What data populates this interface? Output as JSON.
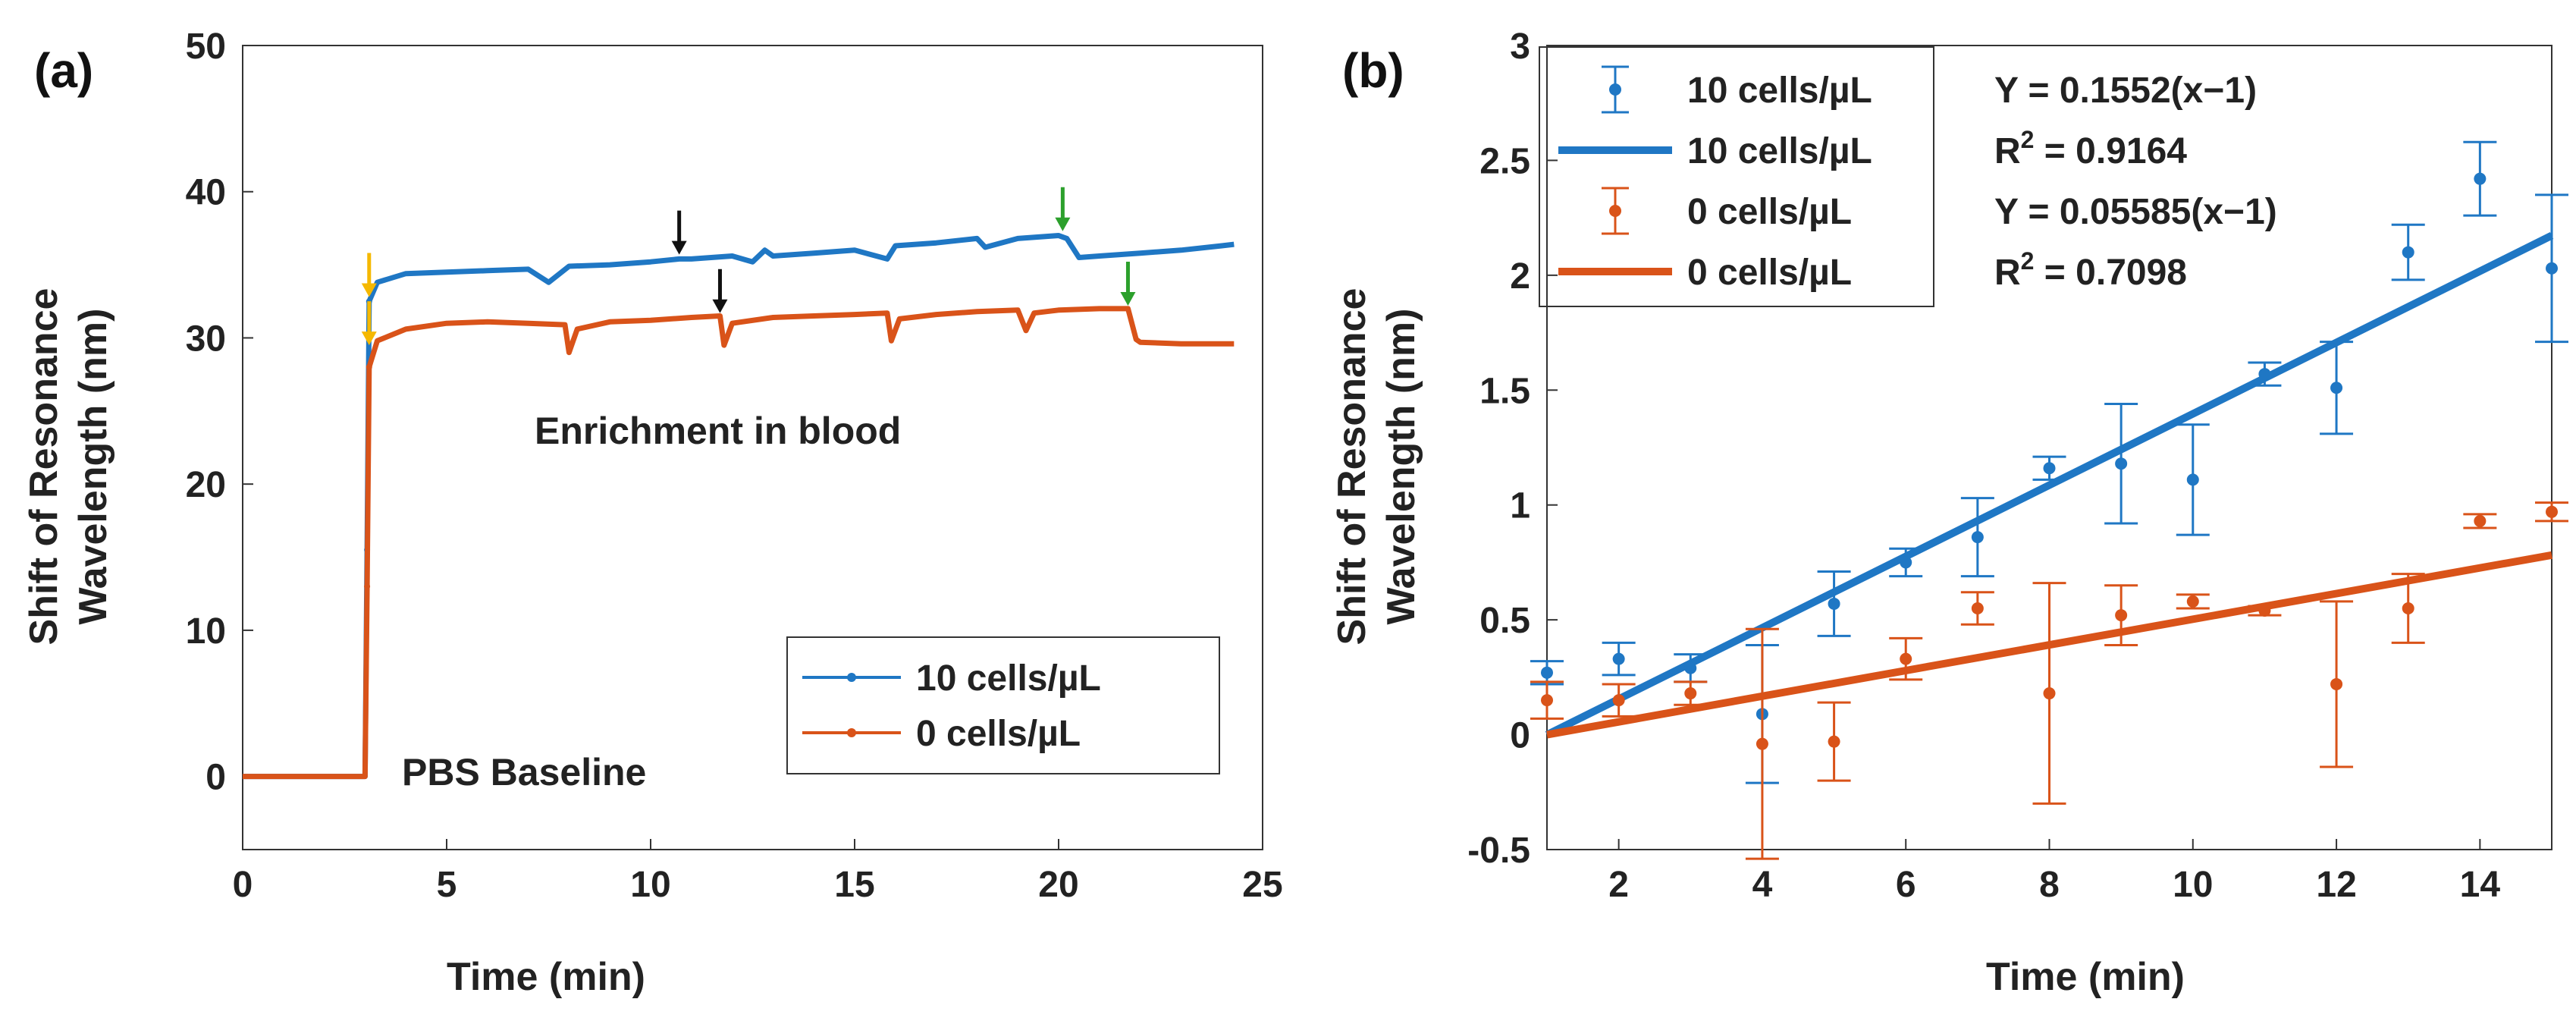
{
  "colors": {
    "blue": "#1f77c4",
    "orange": "#d95319",
    "black": "#111111",
    "green": "#2ca02c",
    "yellow": "#f5b800"
  },
  "chart_data": [
    {
      "panel": "(a)",
      "type": "line",
      "xlabel": "Time (min)",
      "ylabel_line1": "Shift of Resonance",
      "ylabel_line2": "Wavelength (nm)",
      "xlim": [
        0,
        25
      ],
      "ylim": [
        -5,
        50
      ],
      "xticks": [
        0,
        5,
        10,
        15,
        20,
        25
      ],
      "yticks": [
        0,
        10,
        20,
        30,
        40,
        50
      ],
      "xtick_labels": [
        "0",
        "5",
        "10",
        "15",
        "20",
        "25"
      ],
      "ytick_labels": [
        "0",
        "10",
        "20",
        "30",
        "40",
        "50"
      ],
      "legend": [
        "10 cells/µL",
        "0 cells/µL"
      ],
      "annotations": {
        "baseline": "PBS Baseline",
        "enrichment": "Enrichment in blood"
      },
      "series": [
        {
          "name": "10 cells/µL",
          "color": "#1f77c4",
          "x": [
            0,
            1,
            2,
            3.0,
            3.05,
            3.1,
            3.3,
            4,
            5,
            6,
            7,
            7.5,
            8,
            9,
            10,
            10.7,
            11,
            12,
            12.5,
            12.8,
            13,
            14,
            15,
            15.8,
            16,
            17,
            18,
            18.2,
            19,
            20,
            20.2,
            20.5,
            21,
            22,
            23,
            24,
            24.3
          ],
          "y": [
            0,
            0,
            0,
            0,
            15.5,
            32.5,
            33.8,
            34.4,
            34.5,
            34.6,
            34.7,
            33.8,
            34.9,
            35.0,
            35.2,
            35.4,
            35.4,
            35.6,
            35.2,
            36.0,
            35.6,
            35.8,
            36.0,
            35.4,
            36.3,
            36.5,
            36.8,
            36.2,
            36.8,
            37.0,
            36.8,
            35.5,
            35.6,
            35.8,
            36.0,
            36.3,
            36.4
          ]
        },
        {
          "name": "0 cells/µL",
          "color": "#d95319",
          "x": [
            0,
            1,
            2,
            3.0,
            3.05,
            3.1,
            3.3,
            4,
            5,
            6,
            7,
            7.9,
            8.0,
            8.2,
            9,
            10,
            11,
            11.7,
            11.8,
            12.0,
            13,
            14,
            15,
            15.8,
            15.9,
            16.1,
            17,
            18,
            19,
            19.2,
            19.4,
            20,
            21,
            21.7,
            21.9,
            22,
            23,
            24,
            24.3
          ],
          "y": [
            0,
            0,
            0,
            0,
            13,
            28,
            29.8,
            30.6,
            31.0,
            31.1,
            31.0,
            30.9,
            29.0,
            30.6,
            31.1,
            31.2,
            31.4,
            31.5,
            29.5,
            31.0,
            31.4,
            31.5,
            31.6,
            31.7,
            29.8,
            31.3,
            31.6,
            31.8,
            31.9,
            30.5,
            31.7,
            31.9,
            32.0,
            32.0,
            29.9,
            29.7,
            29.6,
            29.6,
            29.6
          ]
        }
      ],
      "arrows": [
        {
          "color": "#f5b800",
          "x": 3.1,
          "y": 32.8
        },
        {
          "color": "#f5b800",
          "x": 3.1,
          "y": 29.5
        },
        {
          "color": "#111111",
          "x": 10.7,
          "y": 35.7
        },
        {
          "color": "#111111",
          "x": 11.7,
          "y": 31.7
        },
        {
          "color": "#2ca02c",
          "x": 20.1,
          "y": 37.3
        },
        {
          "color": "#2ca02c",
          "x": 21.7,
          "y": 32.2
        }
      ]
    },
    {
      "panel": "(b)",
      "type": "scatter",
      "xlabel": "Time (min)",
      "ylabel_line1": "Shift of Resonance",
      "ylabel_line2": "Wavelength (nm)",
      "xlim": [
        1,
        15
      ],
      "ylim": [
        -0.5,
        3
      ],
      "xticks": [
        2,
        4,
        6,
        8,
        10,
        12,
        14
      ],
      "yticks": [
        -0.5,
        0,
        0.5,
        1,
        1.5,
        2,
        2.5,
        3
      ],
      "xtick_labels": [
        "2",
        "4",
        "6",
        "8",
        "10",
        "12",
        "14"
      ],
      "ytick_labels": [
        "-0.5",
        "0",
        "0.5",
        "1",
        "1.5",
        "2",
        "2.5",
        "3"
      ],
      "legend": [
        "10 cells/µL",
        "10 cells/µL",
        "0 cells/µL",
        "0 cells/µL"
      ],
      "equations": [
        "Y = 0.1552(x−1)",
        "R",
        "2",
        " = 0.9164",
        "Y = 0.05585(x−1)",
        "R",
        "2",
        " = 0.7098"
      ],
      "series": [
        {
          "name": "10 cells/µL",
          "color": "#1f77c4",
          "x": [
            1,
            2,
            3,
            4,
            5,
            6,
            7,
            8,
            9,
            10,
            11,
            12,
            13,
            14,
            15
          ],
          "y": [
            0.27,
            0.33,
            0.29,
            0.09,
            0.57,
            0.75,
            0.86,
            1.16,
            1.18,
            1.11,
            1.57,
            1.51,
            2.1,
            2.42,
            2.03
          ],
          "err": [
            0.05,
            0.07,
            0.06,
            0.3,
            0.14,
            0.06,
            0.17,
            0.05,
            0.26,
            0.24,
            0.05,
            0.2,
            0.12,
            0.16,
            0.32
          ],
          "fit_slope": 0.1552
        },
        {
          "name": "0 cells/µL",
          "color": "#d95319",
          "x": [
            1,
            2,
            3,
            4,
            5,
            6,
            7,
            8,
            9,
            10,
            11,
            12,
            13,
            14,
            15
          ],
          "y": [
            0.15,
            0.15,
            0.18,
            -0.04,
            -0.03,
            0.33,
            0.55,
            0.18,
            0.52,
            0.58,
            0.54,
            0.22,
            0.55,
            0.93,
            0.97
          ],
          "err": [
            0.08,
            0.07,
            0.05,
            0.5,
            0.17,
            0.09,
            0.07,
            0.48,
            0.13,
            0.03,
            0.02,
            0.36,
            0.15,
            0.03,
            0.04
          ],
          "fit_slope": 0.05585
        }
      ]
    }
  ]
}
